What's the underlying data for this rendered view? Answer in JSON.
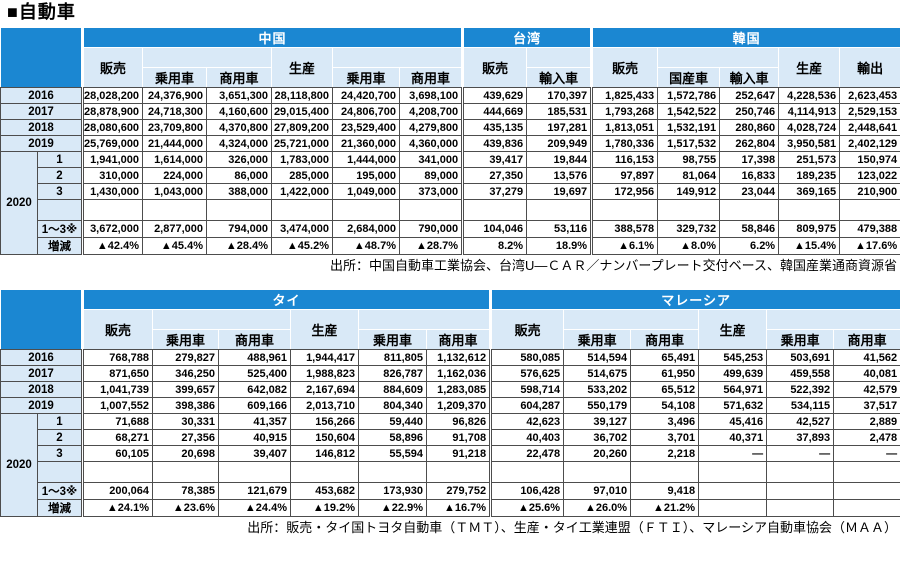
{
  "page_title": "■自動車",
  "colors": {
    "banner_blue": "#1b87d2",
    "light_blue": "#d9e9f7",
    "border_dark": "#4d4d4d"
  },
  "chart_data": [
    {
      "type": "table",
      "title": "自動車（中国・台湾・韓国）",
      "group_spans": [
        6,
        2,
        5
      ],
      "header": {
        "group_row": [
          "中国",
          "台湾",
          "韓国"
        ],
        "mid_row": [
          "販売",
          "生産",
          "販売",
          "販売",
          "生産",
          "輸出"
        ],
        "sub_row": [
          "乗用車",
          "商用車",
          "乗用車",
          "商用車",
          "輸入車",
          "国産車",
          "輸入車"
        ]
      },
      "rows": [
        {
          "kind": "y",
          "label": "2016",
          "cells": [
            "28,028,200",
            "24,376,900",
            "3,651,300",
            "28,118,800",
            "24,420,700",
            "3,698,100",
            "439,629",
            "170,397",
            "1,825,433",
            "1,572,786",
            "252,647",
            "4,228,536",
            "2,623,453"
          ]
        },
        {
          "kind": "y",
          "label": "2017",
          "cells": [
            "28,878,900",
            "24,718,300",
            "4,160,600",
            "29,015,400",
            "24,806,700",
            "4,208,700",
            "444,669",
            "185,531",
            "1,793,268",
            "1,542,522",
            "250,746",
            "4,114,913",
            "2,529,153"
          ]
        },
        {
          "kind": "y",
          "label": "2018",
          "cells": [
            "28,080,600",
            "23,709,800",
            "4,370,800",
            "27,809,200",
            "23,529,400",
            "4,279,800",
            "435,135",
            "197,281",
            "1,813,051",
            "1,532,191",
            "280,860",
            "4,028,724",
            "2,448,641"
          ]
        },
        {
          "kind": "y",
          "label": "2019",
          "cells": [
            "25,769,000",
            "21,444,000",
            "4,324,000",
            "25,721,000",
            "21,360,000",
            "4,360,000",
            "439,836",
            "209,949",
            "1,780,336",
            "1,517,532",
            "262,804",
            "3,950,581",
            "2,402,129"
          ]
        },
        {
          "kind": "m",
          "block": "2020",
          "block_rows": 6,
          "label": "1",
          "cells": [
            "1,941,000",
            "1,614,000",
            "326,000",
            "1,783,000",
            "1,444,000",
            "341,000",
            "39,417",
            "19,844",
            "116,153",
            "98,755",
            "17,398",
            "251,573",
            "150,974"
          ]
        },
        {
          "kind": "m",
          "label": "2",
          "cells": [
            "310,000",
            "224,000",
            "86,000",
            "285,000",
            "195,000",
            "89,000",
            "27,350",
            "13,576",
            "97,897",
            "81,064",
            "16,833",
            "189,235",
            "123,022"
          ]
        },
        {
          "kind": "m",
          "label": "3",
          "cells": [
            "1,430,000",
            "1,043,000",
            "388,000",
            "1,422,000",
            "1,049,000",
            "373,000",
            "37,279",
            "19,697",
            "172,956",
            "149,912",
            "23,044",
            "369,165",
            "210,900"
          ]
        },
        {
          "kind": "m",
          "label": "",
          "tall": true,
          "cells": [
            "",
            "",
            "",
            "",
            "",
            "",
            "",
            "",
            "",
            "",
            "",
            "",
            ""
          ]
        },
        {
          "kind": "m",
          "label": "1～3※",
          "cells": [
            "3,672,000",
            "2,877,000",
            "794,000",
            "3,474,000",
            "2,684,000",
            "790,000",
            "104,046",
            "53,116",
            "388,578",
            "329,732",
            "58,846",
            "809,975",
            "479,388"
          ]
        },
        {
          "kind": "m",
          "label": "増減",
          "cells": [
            "▲42.4%",
            "▲45.4%",
            "▲28.4%",
            "▲45.2%",
            "▲48.7%",
            "▲28.7%",
            "8.2%",
            "18.9%",
            "▲6.1%",
            "▲8.0%",
            "6.2%",
            "▲15.4%",
            "▲17.6%"
          ]
        }
      ],
      "source": "出所：中国自動車工業協会、台湾U―ＣＡＲ／ナンバープレート交付ベース、韓国産業通商資源省"
    },
    {
      "type": "table",
      "title": "自動車（タイ・マレーシア）",
      "group_spans": [
        6,
        6
      ],
      "header": {
        "group_row": [
          "タイ",
          "マレーシア"
        ],
        "mid_row": [
          "販売",
          "生産",
          "販売",
          "生産"
        ],
        "sub_row": [
          "乗用車",
          "商用車",
          "乗用車",
          "商用車",
          "乗用車",
          "商用車",
          "乗用車",
          "商用車"
        ]
      },
      "rows": [
        {
          "kind": "y",
          "label": "2016",
          "cells": [
            "768,788",
            "279,827",
            "488,961",
            "1,944,417",
            "811,805",
            "1,132,612",
            "580,085",
            "514,594",
            "65,491",
            "545,253",
            "503,691",
            "41,562"
          ]
        },
        {
          "kind": "y",
          "label": "2017",
          "cells": [
            "871,650",
            "346,250",
            "525,400",
            "1,988,823",
            "826,787",
            "1,162,036",
            "576,625",
            "514,675",
            "61,950",
            "499,639",
            "459,558",
            "40,081"
          ]
        },
        {
          "kind": "y",
          "label": "2018",
          "cells": [
            "1,041,739",
            "399,657",
            "642,082",
            "2,167,694",
            "884,609",
            "1,283,085",
            "598,714",
            "533,202",
            "65,512",
            "564,971",
            "522,392",
            "42,579"
          ]
        },
        {
          "kind": "y",
          "label": "2019",
          "cells": [
            "1,007,552",
            "398,386",
            "609,166",
            "2,013,710",
            "804,340",
            "1,209,370",
            "604,287",
            "550,179",
            "54,108",
            "571,632",
            "534,115",
            "37,517"
          ]
        },
        {
          "kind": "m",
          "block": "2020",
          "block_rows": 6,
          "label": "1",
          "cells": [
            "71,688",
            "30,331",
            "41,357",
            "156,266",
            "59,440",
            "96,826",
            "42,623",
            "39,127",
            "3,496",
            "45,416",
            "42,527",
            "2,889"
          ]
        },
        {
          "kind": "m",
          "label": "2",
          "cells": [
            "68,271",
            "27,356",
            "40,915",
            "150,604",
            "58,896",
            "91,708",
            "40,403",
            "36,702",
            "3,701",
            "40,371",
            "37,893",
            "2,478"
          ]
        },
        {
          "kind": "m",
          "label": "3",
          "cells": [
            "60,105",
            "20,698",
            "39,407",
            "146,812",
            "55,594",
            "91,218",
            "22,478",
            "20,260",
            "2,218",
            "—",
            "—",
            "—"
          ]
        },
        {
          "kind": "m",
          "label": "",
          "tall": true,
          "cells": [
            "",
            "",
            "",
            "",
            "",
            "",
            "",
            "",
            "",
            "",
            "",
            ""
          ]
        },
        {
          "kind": "m",
          "label": "1～3※",
          "cells": [
            "200,064",
            "78,385",
            "121,679",
            "453,682",
            "173,930",
            "279,752",
            "106,428",
            "97,010",
            "9,418",
            "",
            "",
            ""
          ]
        },
        {
          "kind": "m",
          "label": "増減",
          "cells": [
            "▲24.1%",
            "▲23.6%",
            "▲24.4%",
            "▲19.2%",
            "▲22.9%",
            "▲16.7%",
            "▲25.6%",
            "▲26.0%",
            "▲21.2%",
            "",
            "",
            ""
          ]
        }
      ],
      "source": "出所：販売・タイ国トヨタ自動車（ＴＭＴ）、生産・タイ工業連盟（ＦＴＩ）、マレーシア自動車協会（ＭＡＡ）"
    }
  ]
}
